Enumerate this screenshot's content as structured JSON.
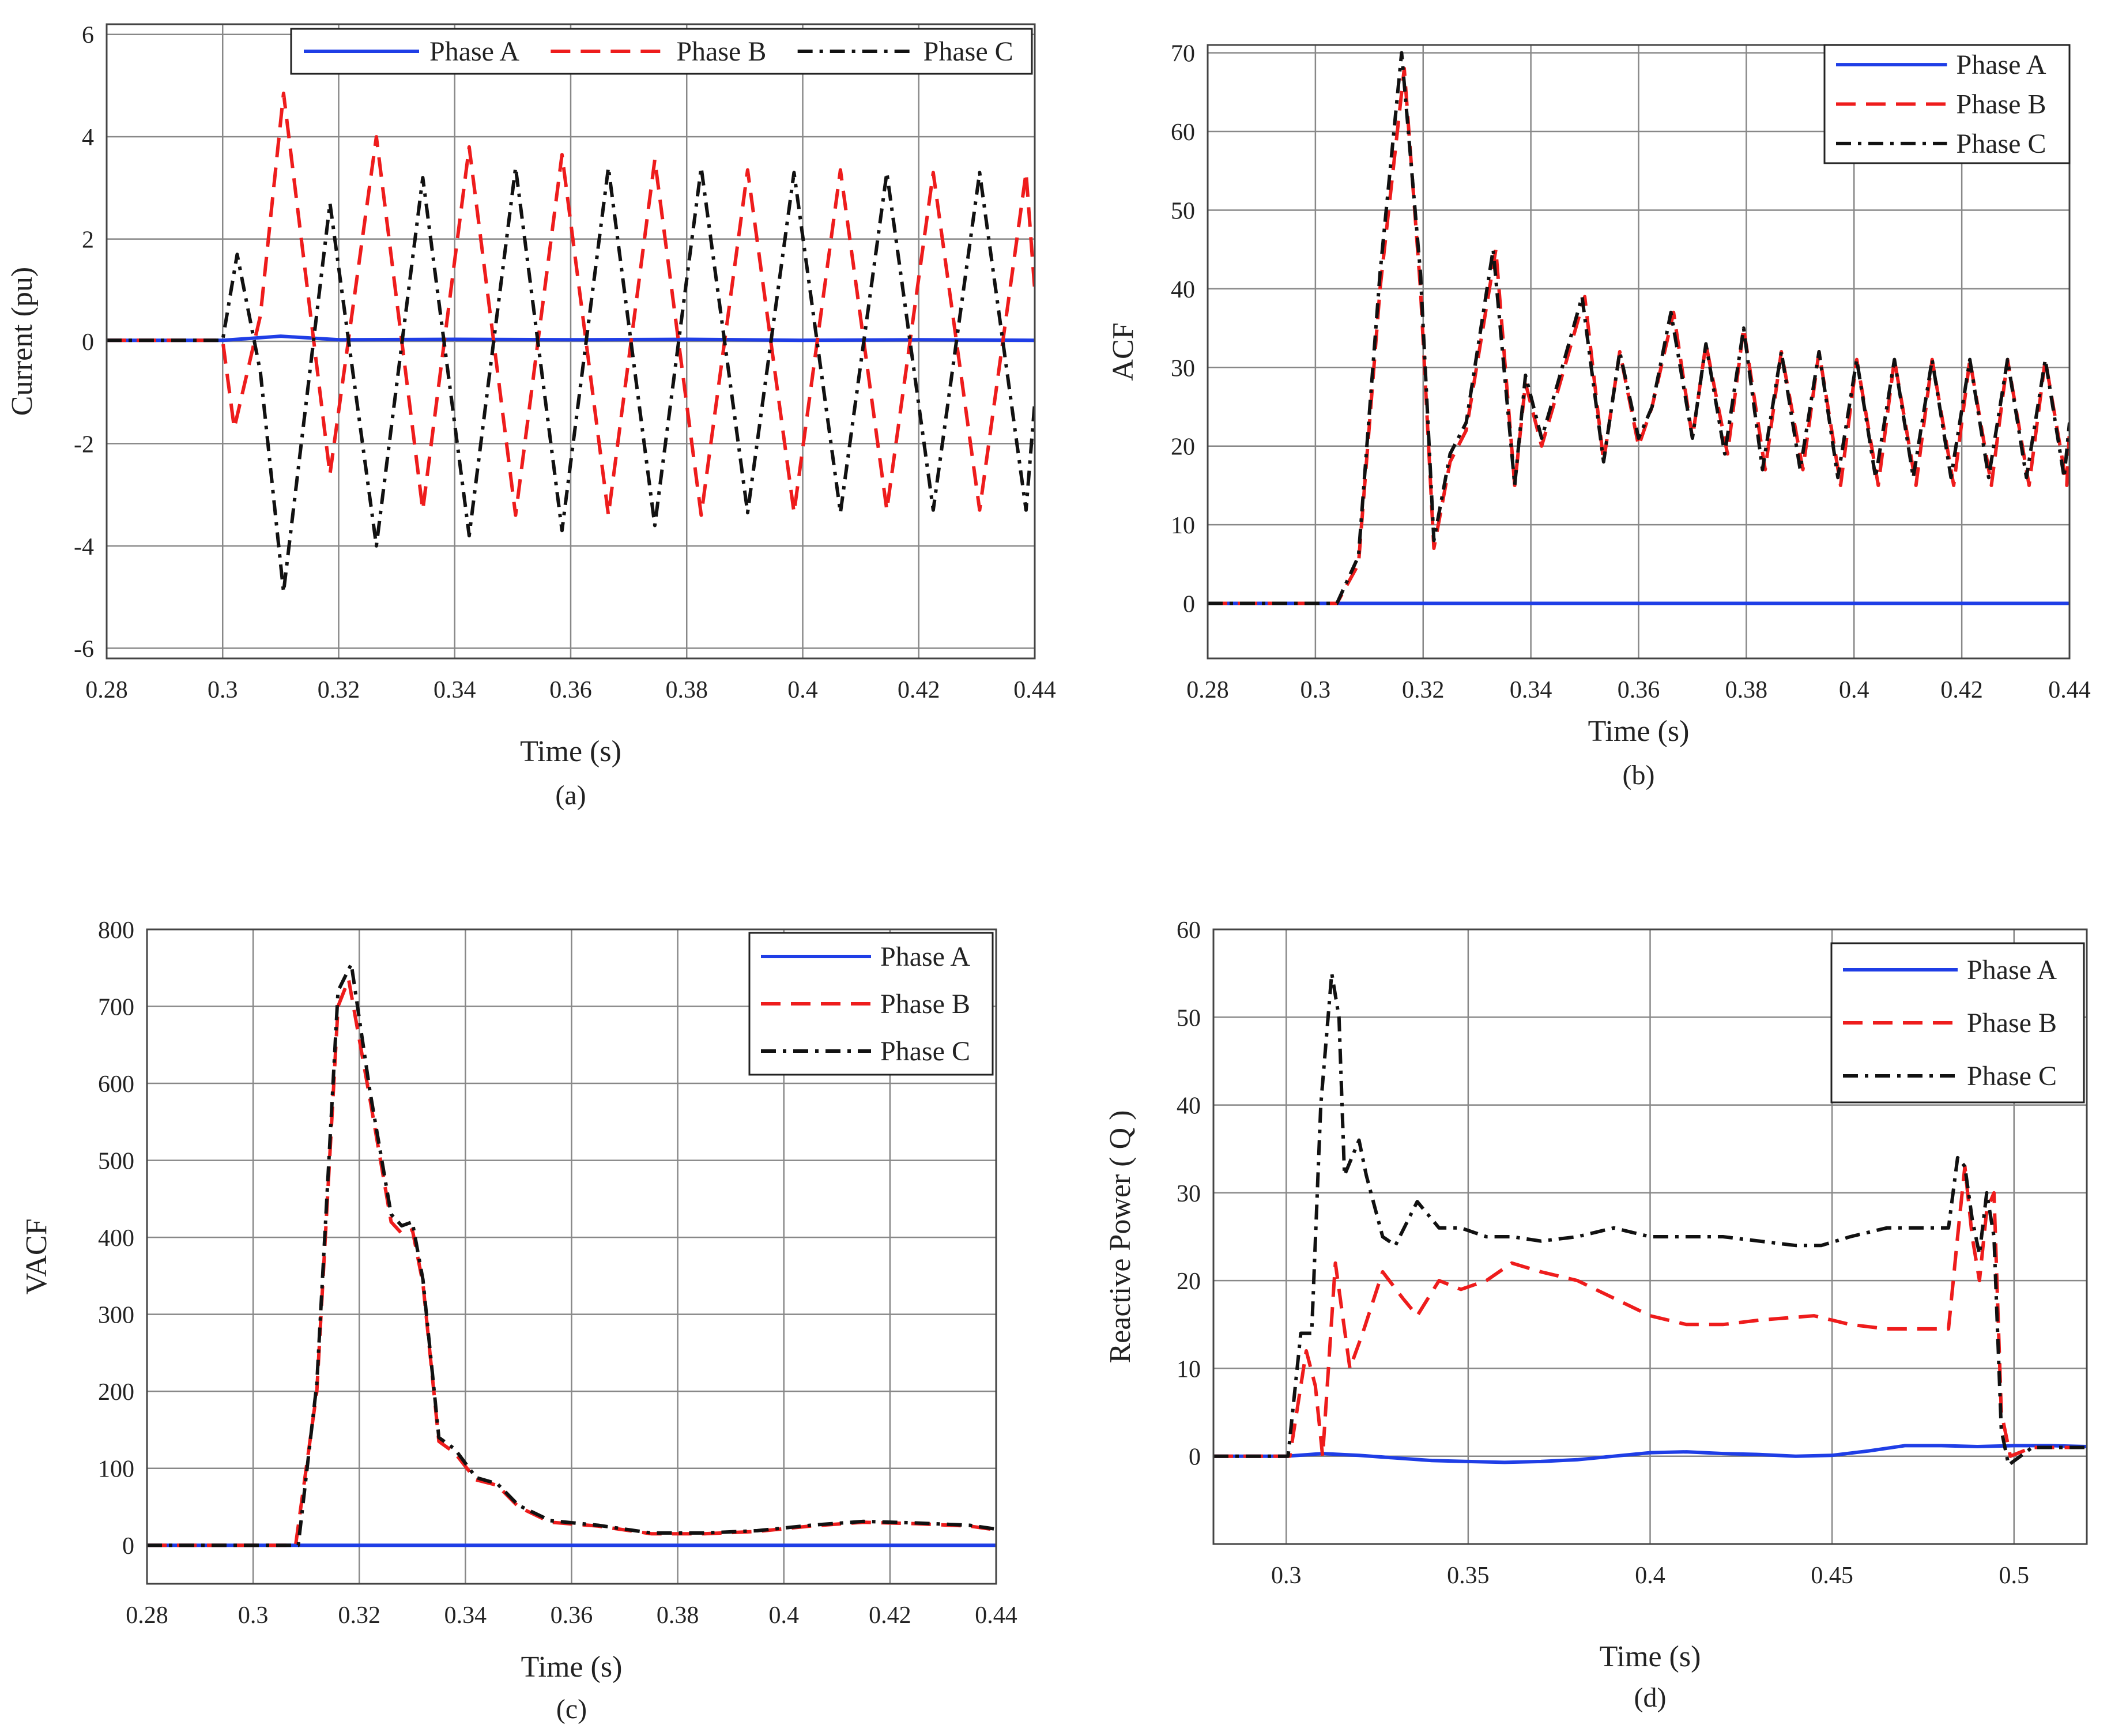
{
  "colors": {
    "phase_a": "#1f3ee6",
    "phase_b": "#ee1c1c",
    "phase_c": "#111111",
    "grid": "#888888",
    "frame": "#444444"
  },
  "chart_data": [
    {
      "id": "a",
      "type": "line",
      "caption": "(a)",
      "xlabel": "Time (s)",
      "ylabel": "Current (pu)",
      "xlim": [
        0.28,
        0.44
      ],
      "ylim": [
        -6.2,
        6.2
      ],
      "xticks": [
        0.28,
        0.3,
        0.32,
        0.34,
        0.36,
        0.38,
        0.4,
        0.42,
        0.44
      ],
      "xtick_labels": [
        "0.28",
        "0.3",
        "0.32",
        "0.34",
        "0.36",
        "0.38",
        "0.4",
        "0.42",
        "0.44"
      ],
      "yticks": [
        -6,
        -4,
        -2,
        0,
        2,
        4,
        6
      ],
      "ytick_labels": [
        "-6",
        "-4",
        "-2",
        "0",
        "2",
        "4",
        "6"
      ],
      "legend": {
        "placement": "top-right-horizontal",
        "entries": [
          "Phase A",
          "Phase B",
          "Phase C"
        ]
      },
      "series": [
        {
          "name": "Phase A",
          "style": "solid",
          "x": [
            0.28,
            0.3,
            0.305,
            0.31,
            0.32,
            0.34,
            0.36,
            0.38,
            0.4,
            0.42,
            0.44
          ],
          "y": [
            0.02,
            0.02,
            0.06,
            0.1,
            0.03,
            0.04,
            0.03,
            0.04,
            0.02,
            0.03,
            0.02
          ]
        },
        {
          "name": "Phase B",
          "style": "dashed",
          "x": [
            0.28,
            0.3,
            0.302,
            0.3065,
            0.3105,
            0.3185,
            0.3265,
            0.3345,
            0.3425,
            0.3505,
            0.3585,
            0.3665,
            0.3745,
            0.3825,
            0.3905,
            0.3985,
            0.4065,
            0.4145,
            0.4225,
            0.4305,
            0.4385,
            0.44
          ],
          "y": [
            0.02,
            0.02,
            -1.7,
            0.5,
            4.85,
            -2.6,
            4.0,
            -3.3,
            3.8,
            -3.4,
            3.65,
            -3.4,
            3.55,
            -3.4,
            3.35,
            -3.35,
            3.35,
            -3.3,
            3.3,
            -3.3,
            3.3,
            1.0
          ]
        },
        {
          "name": "Phase C",
          "style": "dashdot",
          "x": [
            0.28,
            0.3,
            0.3025,
            0.3065,
            0.3105,
            0.3185,
            0.3265,
            0.3345,
            0.3425,
            0.3505,
            0.3585,
            0.3665,
            0.3745,
            0.3825,
            0.3905,
            0.3985,
            0.4065,
            0.4145,
            0.4225,
            0.4305,
            0.4385,
            0.44
          ],
          "y": [
            0.02,
            0.02,
            1.7,
            -0.6,
            -4.9,
            2.7,
            -4.0,
            3.2,
            -3.8,
            3.4,
            -3.7,
            3.4,
            -3.6,
            3.4,
            -3.35,
            3.3,
            -3.35,
            3.3,
            -3.3,
            3.3,
            -3.3,
            -1.2
          ]
        }
      ]
    },
    {
      "id": "b",
      "type": "line",
      "caption": "(b)",
      "xlabel": "Time (s)",
      "ylabel": "ACF",
      "xlim": [
        0.28,
        0.44
      ],
      "ylim": [
        -7,
        71
      ],
      "xticks": [
        0.28,
        0.3,
        0.32,
        0.34,
        0.36,
        0.38,
        0.4,
        0.42,
        0.44
      ],
      "xtick_labels": [
        "0.28",
        "0.3",
        "0.32",
        "0.34",
        "0.36",
        "0.38",
        "0.4",
        "0.42",
        "0.44"
      ],
      "yticks": [
        0,
        10,
        20,
        30,
        40,
        50,
        60,
        70
      ],
      "ytick_labels": [
        "0",
        "10",
        "20",
        "30",
        "40",
        "50",
        "60",
        "70"
      ],
      "legend": {
        "placement": "top-right",
        "entries": [
          "Phase A",
          "Phase B",
          "Phase C"
        ]
      },
      "series": [
        {
          "name": "Phase A",
          "style": "solid",
          "x": [
            0.28,
            0.44
          ],
          "y": [
            0,
            0
          ]
        },
        {
          "name": "Phase B",
          "style": "dashed",
          "x": [
            0.28,
            0.304,
            0.308,
            0.312,
            0.3165,
            0.3195,
            0.322,
            0.325,
            0.328,
            0.3335,
            0.337,
            0.339,
            0.342,
            0.345,
            0.35,
            0.3535,
            0.3565,
            0.36,
            0.3625,
            0.3665,
            0.37,
            0.3725,
            0.3765,
            0.3795,
            0.3835,
            0.3865,
            0.3905,
            0.3935,
            0.3975,
            0.4005,
            0.4045,
            0.4075,
            0.4115,
            0.4145,
            0.4185,
            0.4215,
            0.4255,
            0.4285,
            0.4325,
            0.4355,
            0.4395,
            0.44
          ],
          "y": [
            0,
            0,
            5,
            40,
            68,
            40,
            7,
            18,
            22,
            45,
            15,
            28,
            20,
            27,
            39,
            18,
            32,
            20,
            25,
            37,
            21,
            33,
            19,
            35,
            17,
            32,
            17,
            32,
            15,
            31,
            15,
            31,
            15,
            31,
            15,
            31,
            15,
            31,
            15,
            31,
            15,
            22
          ]
        },
        {
          "name": "Phase C",
          "style": "dashdot",
          "x": [
            0.28,
            0.304,
            0.308,
            0.312,
            0.316,
            0.3195,
            0.322,
            0.325,
            0.328,
            0.333,
            0.337,
            0.339,
            0.342,
            0.345,
            0.3495,
            0.3535,
            0.3565,
            0.36,
            0.3625,
            0.366,
            0.37,
            0.3725,
            0.376,
            0.3795,
            0.383,
            0.3865,
            0.39,
            0.3935,
            0.397,
            0.4005,
            0.404,
            0.4075,
            0.411,
            0.4145,
            0.418,
            0.4215,
            0.425,
            0.4285,
            0.432,
            0.4355,
            0.439,
            0.44
          ],
          "y": [
            0,
            0,
            6,
            42,
            70,
            42,
            8,
            19,
            23,
            45,
            15,
            29,
            21,
            28,
            39,
            18,
            32,
            21,
            25,
            37,
            21,
            33,
            19,
            35,
            17,
            32,
            17,
            32,
            16,
            31,
            16,
            31,
            16,
            31,
            16,
            31,
            16,
            31,
            16,
            31,
            16,
            23
          ]
        }
      ]
    },
    {
      "id": "c",
      "type": "line",
      "caption": "(c)",
      "xlabel": "Time (s)",
      "ylabel": "VACF",
      "xlim": [
        0.28,
        0.44
      ],
      "ylim": [
        -50,
        800
      ],
      "xticks": [
        0.28,
        0.3,
        0.32,
        0.34,
        0.36,
        0.38,
        0.4,
        0.42,
        0.44
      ],
      "xtick_labels": [
        "0.28",
        "0.3",
        "0.32",
        "0.34",
        "0.36",
        "0.38",
        "0.4",
        "0.42",
        "0.44"
      ],
      "yticks": [
        0,
        100,
        200,
        300,
        400,
        500,
        600,
        700,
        800
      ],
      "ytick_labels": [
        "0",
        "100",
        "200",
        "300",
        "400",
        "500",
        "600",
        "700",
        "800"
      ],
      "legend": {
        "placement": "top-right",
        "entries": [
          "Phase A",
          "Phase B",
          "Phase C"
        ]
      },
      "series": [
        {
          "name": "Phase A",
          "style": "solid",
          "x": [
            0.28,
            0.44
          ],
          "y": [
            0,
            0
          ]
        },
        {
          "name": "Phase B",
          "style": "dashed",
          "x": [
            0.28,
            0.308,
            0.312,
            0.316,
            0.318,
            0.322,
            0.326,
            0.328,
            0.33,
            0.332,
            0.335,
            0.338,
            0.342,
            0.346,
            0.35,
            0.356,
            0.365,
            0.375,
            0.385,
            0.395,
            0.405,
            0.415,
            0.425,
            0.435,
            0.44
          ],
          "y": [
            0,
            0,
            200,
            700,
            735,
            580,
            420,
            405,
            410,
            340,
            135,
            120,
            85,
            78,
            50,
            30,
            25,
            15,
            15,
            18,
            25,
            30,
            28,
            25,
            20
          ]
        },
        {
          "name": "Phase C",
          "style": "dashdot",
          "x": [
            0.28,
            0.3085,
            0.312,
            0.316,
            0.3185,
            0.322,
            0.326,
            0.328,
            0.33,
            0.332,
            0.335,
            0.338,
            0.342,
            0.346,
            0.35,
            0.356,
            0.365,
            0.375,
            0.385,
            0.395,
            0.405,
            0.415,
            0.425,
            0.435,
            0.44
          ],
          "y": [
            0,
            0,
            210,
            720,
            755,
            590,
            430,
            415,
            420,
            345,
            140,
            125,
            88,
            80,
            52,
            32,
            26,
            16,
            16,
            19,
            26,
            31,
            29,
            26,
            21
          ]
        }
      ]
    },
    {
      "id": "d",
      "type": "line",
      "caption": "(d)",
      "xlabel": "Time (s)",
      "ylabel": "Reactive Power ( Q )",
      "xlim": [
        0.28,
        0.52
      ],
      "ylim": [
        -10,
        60
      ],
      "xticks": [
        0.3,
        0.35,
        0.4,
        0.45,
        0.5
      ],
      "xtick_labels": [
        "0.3",
        "0.35",
        "0.4",
        "0.45",
        "0.5"
      ],
      "yticks": [
        0,
        10,
        20,
        30,
        40,
        50,
        60
      ],
      "ytick_labels": [
        "0",
        "10",
        "20",
        "30",
        "40",
        "50",
        "60"
      ],
      "legend": {
        "placement": "top-right",
        "entries": [
          "Phase A",
          "Phase B",
          "Phase C"
        ]
      },
      "series": [
        {
          "name": "Phase A",
          "style": "solid",
          "x": [
            0.28,
            0.3,
            0.31,
            0.32,
            0.33,
            0.34,
            0.35,
            0.36,
            0.37,
            0.38,
            0.39,
            0.4,
            0.41,
            0.42,
            0.43,
            0.44,
            0.45,
            0.46,
            0.47,
            0.48,
            0.49,
            0.5,
            0.51,
            0.52
          ],
          "y": [
            0,
            0,
            0.3,
            0.1,
            -0.2,
            -0.5,
            -0.6,
            -0.7,
            -0.6,
            -0.4,
            0,
            0.4,
            0.5,
            0.3,
            0.2,
            0,
            0.1,
            0.6,
            1.2,
            1.2,
            1.1,
            1.2,
            1.2,
            1.1
          ]
        },
        {
          "name": "Phase B",
          "style": "dashed",
          "x": [
            0.28,
            0.301,
            0.3055,
            0.308,
            0.31,
            0.3135,
            0.3175,
            0.321,
            0.3265,
            0.332,
            0.336,
            0.342,
            0.348,
            0.355,
            0.362,
            0.37,
            0.38,
            0.39,
            0.4,
            0.41,
            0.42,
            0.43,
            0.445,
            0.455,
            0.465,
            0.475,
            0.482,
            0.4845,
            0.4865,
            0.4885,
            0.4905,
            0.4925,
            0.4945,
            0.4965,
            0.499,
            0.505,
            0.52
          ],
          "y": [
            0,
            0,
            12,
            8,
            0,
            22,
            10,
            14,
            21,
            18,
            16,
            20,
            19,
            20,
            22,
            21,
            20,
            18,
            16,
            15,
            15,
            15.5,
            16,
            15,
            14.5,
            14.5,
            14.5,
            25,
            33,
            25,
            20,
            28,
            30,
            5,
            0,
            1,
            1
          ]
        },
        {
          "name": "Phase C",
          "style": "dashdot",
          "x": [
            0.28,
            0.3005,
            0.304,
            0.307,
            0.3095,
            0.3125,
            0.3145,
            0.316,
            0.32,
            0.322,
            0.3265,
            0.33,
            0.336,
            0.342,
            0.348,
            0.355,
            0.362,
            0.37,
            0.38,
            0.39,
            0.4,
            0.41,
            0.42,
            0.43,
            0.44,
            0.447,
            0.455,
            0.465,
            0.475,
            0.482,
            0.4845,
            0.4865,
            0.4885,
            0.4905,
            0.4925,
            0.4945,
            0.4965,
            0.4985,
            0.505,
            0.52
          ],
          "y": [
            0,
            0,
            14,
            14,
            40,
            55,
            50,
            32,
            36,
            32,
            25,
            24,
            29,
            26,
            26,
            25,
            25,
            24.5,
            25,
            26,
            25,
            25,
            25,
            24.5,
            24,
            24,
            25,
            26,
            26,
            26,
            34,
            33,
            27,
            23,
            30,
            25,
            3,
            -1,
            1,
            1
          ]
        }
      ]
    }
  ]
}
